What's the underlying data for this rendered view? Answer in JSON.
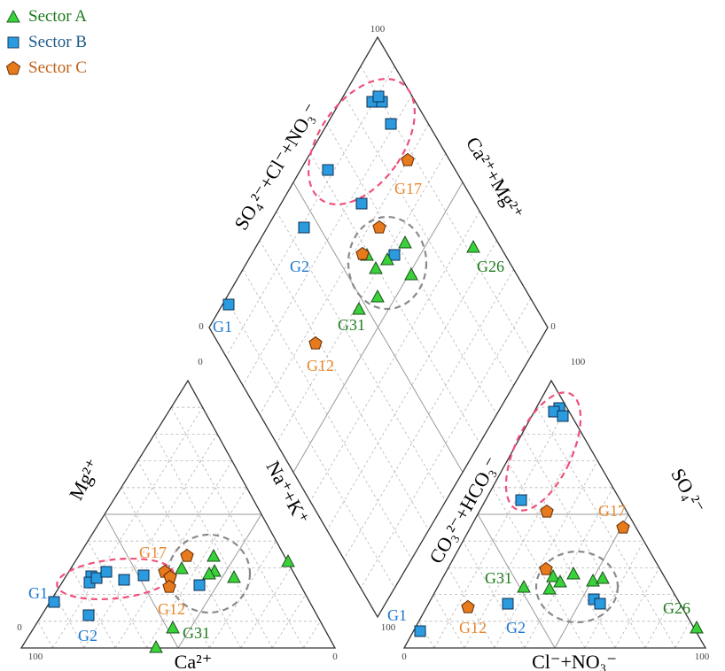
{
  "legend": [
    {
      "id": "A",
      "label": "Sector A",
      "marker": "triangle",
      "fill": "#3ad23a",
      "text_color": "#1c7a1c"
    },
    {
      "id": "B",
      "label": "Sector B",
      "marker": "square",
      "fill": "#2b9be0",
      "text_color": "#1f5c8a"
    },
    {
      "id": "C",
      "label": "Sector C",
      "marker": "pentagon",
      "fill": "#e77a1c",
      "text_color": "#c0621a"
    }
  ],
  "axis_labels": {
    "diamond_upper_left": "SO₄²⁻+Cl⁻+NO₃⁻",
    "diamond_upper_right": "Ca²⁺+Mg²⁺",
    "left_tri_left": "Mg²⁺",
    "left_tri_right": "Na⁺+K⁺",
    "left_tri_bottom": "Ca²⁺",
    "right_tri_left": "CO₃²⁻+HCO₃⁻",
    "right_tri_right": "SO₄²⁻",
    "right_tri_bottom": "Cl⁻+NO₃⁻"
  },
  "ticks": {
    "diamond_top": "100",
    "diamond_left": "0",
    "diamond_right": "0",
    "left_bottom_left": "100",
    "left_bottom_right": "0",
    "left_apex": "0",
    "left_base_left": "0",
    "right_bottom_left": "0",
    "right_bottom_right": "100",
    "right_apex": "100",
    "right_base_left": "100"
  },
  "sample_labels": {
    "G17_diamond": "G17",
    "G2_diamond": "G2",
    "G26_diamond": "G26",
    "G1_diamond": "G1",
    "G31_diamond": "G31",
    "G12_diamond": "G12",
    "G17_left": "G17",
    "G1_left": "G1",
    "G2_left": "G2",
    "G12_left": "G12",
    "G31_left": "G31",
    "G17_right": "G17",
    "G31_right": "G31",
    "G1_right": "G1",
    "G12_right": "G12",
    "G2_right": "G2",
    "G26_right": "G26"
  },
  "colors": {
    "sector_A": "#3ad23a",
    "sector_B": "#2b9be0",
    "sector_C": "#e77a1c",
    "label_A": "#1c7a1c",
    "label_B": "#1a78d0",
    "label_C": "#e8862a",
    "cluster_pink": "#f0507a",
    "cluster_grey": "#8a8a8a"
  }
}
